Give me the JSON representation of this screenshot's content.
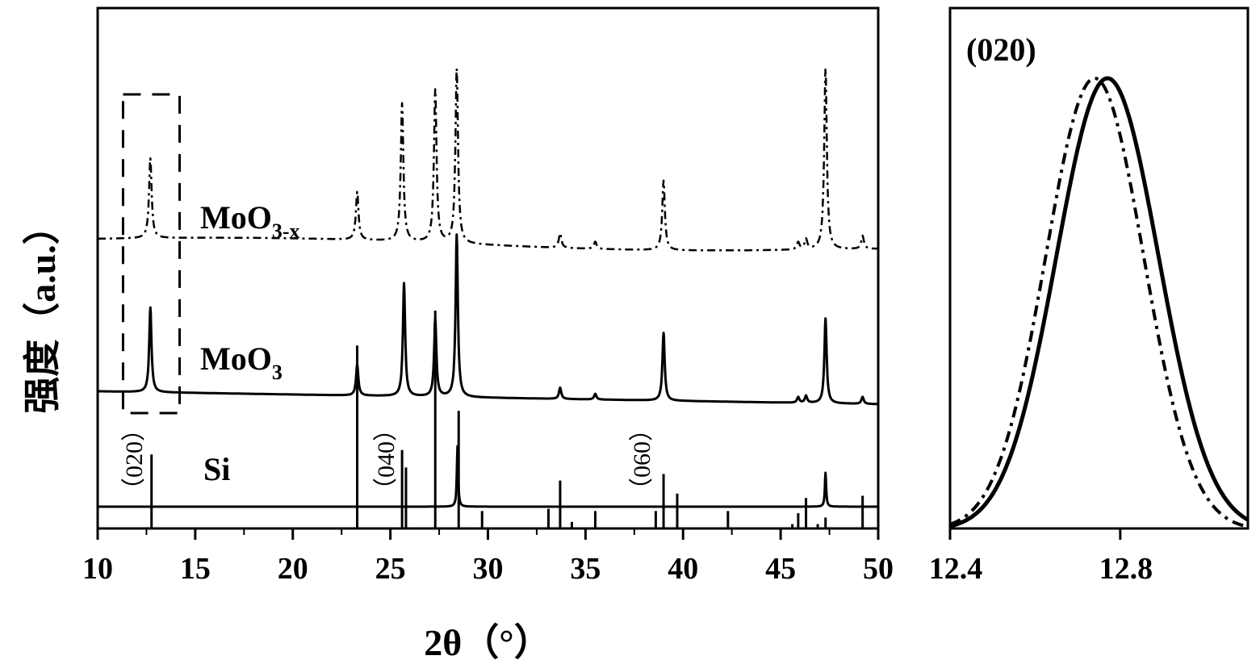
{
  "chart_data": [
    {
      "type": "line",
      "xlabel": "2θ（°）",
      "ylabel": "强度（a.u.）",
      "xlim": [
        10,
        50
      ],
      "xticks": [
        10,
        15,
        20,
        25,
        30,
        35,
        40,
        45,
        50
      ],
      "yticks_shown": false,
      "series": [
        {
          "name": "MoO3-x",
          "name_main": "MoO",
          "name_sub": "3-x",
          "style": "dash-dot",
          "peaks": [
            {
              "x": 12.7,
              "h": 0.55
            },
            {
              "x": 23.3,
              "h": 0.33
            },
            {
              "x": 25.6,
              "h": 0.95
            },
            {
              "x": 27.3,
              "h": 1.05
            },
            {
              "x": 28.4,
              "h": 1.2
            },
            {
              "x": 33.7,
              "h": 0.1
            },
            {
              "x": 35.5,
              "h": 0.05
            },
            {
              "x": 39.0,
              "h": 0.48
            },
            {
              "x": 45.9,
              "h": 0.05
            },
            {
              "x": 46.3,
              "h": 0.07
            },
            {
              "x": 47.3,
              "h": 1.25
            },
            {
              "x": 49.2,
              "h": 0.09
            }
          ]
        },
        {
          "name": "MoO3",
          "name_main": "MoO",
          "name_sub": "3",
          "style": "solid",
          "peaks": [
            {
              "x": 12.7,
              "h": 0.6
            },
            {
              "x": 23.3,
              "h": 0.22
            },
            {
              "x": 25.7,
              "h": 0.8
            },
            {
              "x": 27.3,
              "h": 0.55
            },
            {
              "x": 28.4,
              "h": 1.15
            },
            {
              "x": 33.7,
              "h": 0.08
            },
            {
              "x": 35.5,
              "h": 0.04
            },
            {
              "x": 39.0,
              "h": 0.48
            },
            {
              "x": 45.9,
              "h": 0.04
            },
            {
              "x": 46.3,
              "h": 0.05
            },
            {
              "x": 47.3,
              "h": 0.6
            },
            {
              "x": 49.2,
              "h": 0.05
            }
          ]
        },
        {
          "name": "Si",
          "name_main": "Si",
          "name_sub": "",
          "style": "solid",
          "peaks": [
            {
              "x": 28.44,
              "h": 0.5
            },
            {
              "x": 47.3,
              "h": 0.28
            }
          ]
        }
      ],
      "reference_sticks": [
        {
          "x": 12.76,
          "h": 0.34
        },
        {
          "x": 23.3,
          "h": 0.84
        },
        {
          "x": 25.6,
          "h": 0.36
        },
        {
          "x": 25.8,
          "h": 0.28
        },
        {
          "x": 27.3,
          "h": 1.0
        },
        {
          "x": 28.5,
          "h": 0.54
        },
        {
          "x": 29.7,
          "h": 0.08
        },
        {
          "x": 33.1,
          "h": 0.09
        },
        {
          "x": 33.7,
          "h": 0.22
        },
        {
          "x": 34.3,
          "h": 0.03
        },
        {
          "x": 35.5,
          "h": 0.08
        },
        {
          "x": 38.6,
          "h": 0.08
        },
        {
          "x": 39.0,
          "h": 0.25
        },
        {
          "x": 39.7,
          "h": 0.16
        },
        {
          "x": 42.3,
          "h": 0.08
        },
        {
          "x": 45.6,
          "h": 0.02
        },
        {
          "x": 45.9,
          "h": 0.07
        },
        {
          "x": 46.3,
          "h": 0.14
        },
        {
          "x": 46.9,
          "h": 0.02
        },
        {
          "x": 47.3,
          "h": 0.05
        },
        {
          "x": 49.2,
          "h": 0.15
        }
      ],
      "hkl_labels": [
        {
          "text": "（020）",
          "x": 12.3
        },
        {
          "text": "（040）",
          "x": 24.7
        },
        {
          "text": "（060）",
          "x": 37.8
        }
      ],
      "zoom_box": {
        "x": [
          11.3,
          14.2
        ]
      }
    },
    {
      "type": "line",
      "title": "(020)",
      "xlim": [
        12.4,
        13.1
      ],
      "xticks": [
        12.4,
        12.8
      ],
      "series": [
        {
          "style": "dash-dot",
          "center": 12.74,
          "width": 0.115
        },
        {
          "style": "solid",
          "center": 12.77,
          "width": 0.12
        }
      ]
    }
  ]
}
